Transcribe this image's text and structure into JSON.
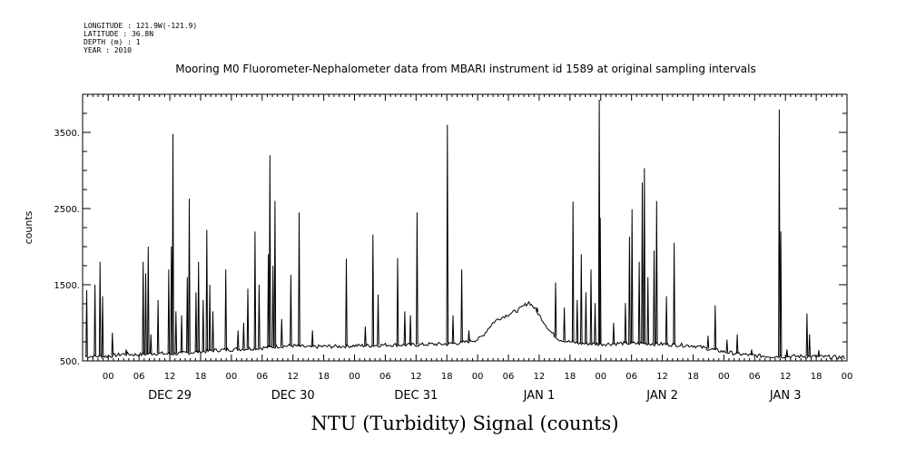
{
  "metadata_lines": [
    "LONGITUDE : 121.9W(-121.9)",
    "LATITUDE : 36.8N",
    "DEPTH (m) : 1",
    "YEAR : 2010"
  ],
  "chart_data": {
    "type": "line",
    "title": "Mooring M0 Fluorometer-Nephalometer data from MBARI instrument id 1589 at original sampling intervals",
    "xlabel": "NTU (Turbidity) Signal (counts)",
    "ylabel": "counts",
    "x_unit": "hours",
    "xlim": [
      -5,
      144
    ],
    "ylim": [
      500,
      4000
    ],
    "y_ticks": [
      500,
      1500,
      2500,
      3500
    ],
    "y_tick_labels": [
      "500.",
      "1500.",
      "2500.",
      "3500."
    ],
    "x_hour_ticks": [
      0,
      6,
      12,
      18,
      24,
      30,
      36,
      42,
      48,
      54,
      60,
      66,
      72,
      78,
      84,
      90,
      96,
      102,
      108,
      114,
      120,
      126,
      132,
      138,
      144
    ],
    "x_hour_labels": [
      "00",
      "06",
      "12",
      "18",
      "00",
      "06",
      "12",
      "18",
      "00",
      "06",
      "12",
      "18",
      "00",
      "06",
      "12",
      "18",
      "00",
      "06",
      "12",
      "18",
      "00",
      "06",
      "12",
      "18",
      "00"
    ],
    "day_labels": [
      {
        "x": 12,
        "label": "DEC 29"
      },
      {
        "x": 36,
        "label": "DEC 30"
      },
      {
        "x": 60,
        "label": "DEC 31"
      },
      {
        "x": 84,
        "label": "JAN  1"
      },
      {
        "x": 108,
        "label": "JAN  2"
      },
      {
        "x": 132,
        "label": "JAN  3"
      }
    ],
    "grid": false,
    "series": [
      {
        "color": "#000000",
        "baseline": [
          [
            -4.5,
            560
          ],
          [
            0,
            560
          ],
          [
            3,
            590
          ],
          [
            6,
            580
          ],
          [
            9,
            600
          ],
          [
            12,
            590
          ],
          [
            14,
            600
          ],
          [
            18,
            620
          ],
          [
            21,
            640
          ],
          [
            24,
            650
          ],
          [
            27,
            660
          ],
          [
            30,
            670
          ],
          [
            33,
            690
          ],
          [
            36,
            700
          ],
          [
            39,
            680
          ],
          [
            42,
            690
          ],
          [
            45,
            690
          ],
          [
            48,
            700
          ],
          [
            51,
            700
          ],
          [
            54,
            710
          ],
          [
            57,
            710
          ],
          [
            60,
            710
          ],
          [
            63,
            720
          ],
          [
            66,
            720
          ],
          [
            69,
            740
          ],
          [
            72,
            780
          ],
          [
            73,
            830
          ],
          [
            74,
            920
          ],
          [
            75,
            1000
          ],
          [
            76,
            1050
          ],
          [
            77,
            1080
          ],
          [
            78,
            1110
          ],
          [
            79,
            1140
          ],
          [
            80,
            1170
          ],
          [
            81,
            1220
          ],
          [
            82,
            1270
          ],
          [
            83,
            1200
          ],
          [
            84,
            1100
          ],
          [
            85,
            1000
          ],
          [
            86,
            900
          ],
          [
            87,
            830
          ],
          [
            88,
            780
          ],
          [
            90,
            750
          ],
          [
            92,
            730
          ],
          [
            96,
            720
          ],
          [
            100,
            730
          ],
          [
            104,
            730
          ],
          [
            108,
            720
          ],
          [
            111,
            710
          ],
          [
            114,
            700
          ],
          [
            117,
            660
          ],
          [
            120,
            620
          ],
          [
            123,
            590
          ],
          [
            126,
            570
          ],
          [
            129,
            560
          ],
          [
            132,
            560
          ],
          [
            135,
            560
          ],
          [
            138,
            555
          ],
          [
            141,
            550
          ],
          [
            143.5,
            545
          ]
        ],
        "spikes": [
          [
            -4.2,
            1430
          ],
          [
            -2.6,
            1500
          ],
          [
            -1.6,
            1800
          ],
          [
            -1.1,
            1350
          ],
          [
            0.8,
            870
          ],
          [
            3.5,
            650
          ],
          [
            6.8,
            1800
          ],
          [
            7.3,
            1650
          ],
          [
            7.8,
            2000
          ],
          [
            8.3,
            850
          ],
          [
            9.7,
            1300
          ],
          [
            11.8,
            1700
          ],
          [
            12.3,
            2000
          ],
          [
            12.6,
            3480
          ],
          [
            13.2,
            1150
          ],
          [
            14.3,
            1100
          ],
          [
            15.4,
            1600
          ],
          [
            15.8,
            2630
          ],
          [
            17.1,
            1400
          ],
          [
            17.6,
            1800
          ],
          [
            18.5,
            1300
          ],
          [
            19.2,
            2220
          ],
          [
            19.8,
            1500
          ],
          [
            20.4,
            1150
          ],
          [
            22.9,
            1700
          ],
          [
            25.3,
            900
          ],
          [
            26.4,
            1000
          ],
          [
            27.2,
            1450
          ],
          [
            28.6,
            2200
          ],
          [
            29.4,
            1500
          ],
          [
            31.2,
            1900
          ],
          [
            31.5,
            3200
          ],
          [
            32.1,
            1750
          ],
          [
            32.5,
            2600
          ],
          [
            33.8,
            1050
          ],
          [
            35.6,
            1630
          ],
          [
            37.2,
            2450
          ],
          [
            39.8,
            900
          ],
          [
            46.4,
            1840
          ],
          [
            50.1,
            950
          ],
          [
            51.6,
            2160
          ],
          [
            52.6,
            1370
          ],
          [
            56.4,
            1850
          ],
          [
            57.8,
            1150
          ],
          [
            58.9,
            1100
          ],
          [
            60.2,
            2450
          ],
          [
            66.1,
            3600
          ],
          [
            67.2,
            1100
          ],
          [
            68.9,
            1700
          ],
          [
            70.3,
            900
          ],
          [
            83.6,
            1200
          ],
          [
            87.2,
            1530
          ],
          [
            88.9,
            1200
          ],
          [
            90.6,
            2590
          ],
          [
            91.4,
            1300
          ],
          [
            92.2,
            1900
          ],
          [
            93.1,
            1400
          ],
          [
            94.1,
            1700
          ],
          [
            94.9,
            1260
          ],
          [
            95.7,
            3930
          ],
          [
            95.9,
            2380
          ],
          [
            98.5,
            1000
          ],
          [
            100.8,
            1260
          ],
          [
            101.6,
            2130
          ],
          [
            102.1,
            2490
          ],
          [
            103.5,
            1800
          ],
          [
            104.1,
            2840
          ],
          [
            104.5,
            3030
          ],
          [
            105.2,
            1600
          ],
          [
            106.4,
            1950
          ],
          [
            106.9,
            2600
          ],
          [
            108.8,
            1350
          ],
          [
            110.3,
            2050
          ],
          [
            116.9,
            830
          ],
          [
            118.3,
            1230
          ],
          [
            120.6,
            780
          ],
          [
            122.6,
            850
          ],
          [
            125.4,
            650
          ],
          [
            130.8,
            3800
          ],
          [
            131.1,
            2200
          ],
          [
            132.3,
            650
          ],
          [
            136.2,
            1120
          ],
          [
            136.7,
            850
          ],
          [
            138.5,
            640
          ]
        ]
      }
    ]
  }
}
